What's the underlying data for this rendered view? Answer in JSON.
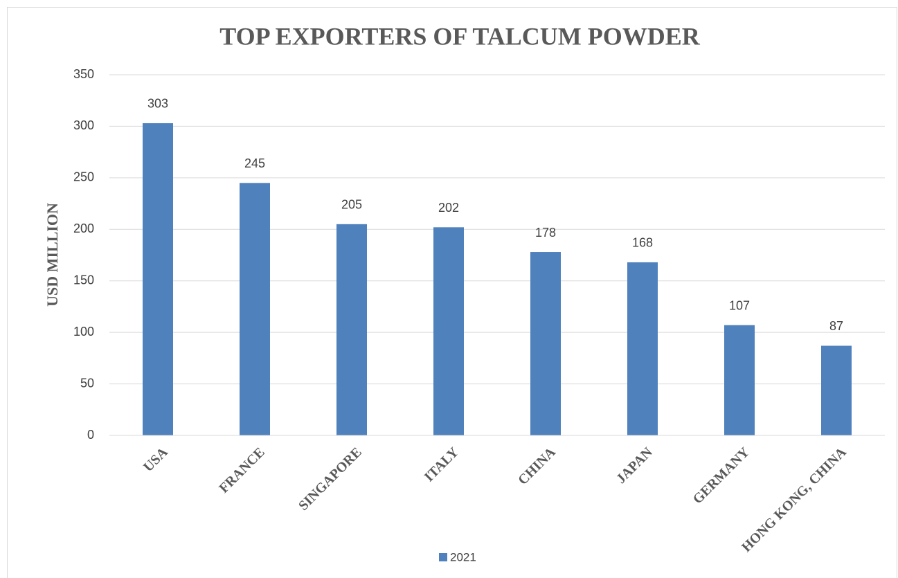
{
  "chart_data": {
    "type": "bar",
    "title": "TOP EXPORTERS OF TALCUM POWDER",
    "y_label": "USD MILLION",
    "categories": [
      "USA",
      "FRANCE",
      "SINGAPORE",
      "ITALY",
      "CHINA",
      "JAPAN",
      "GERMANY",
      "HONG KONG, CHINA"
    ],
    "series": [
      {
        "name": "2021",
        "color": "#4f81bd",
        "values": [
          303,
          245,
          205,
          202,
          178,
          168,
          107,
          87
        ]
      }
    ],
    "ylim": [
      0,
      350
    ],
    "yticks": [
      0,
      50,
      100,
      150,
      200,
      250,
      300,
      350
    ],
    "grid": true,
    "legend": "bottom",
    "data_labels": true
  }
}
